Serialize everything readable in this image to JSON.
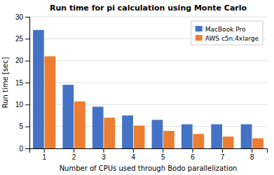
{
  "chart_data": {
    "type": "bar",
    "title": "Run time for pi calculation using Monte Carlo",
    "xlabel": "Number of CPUs used through Bodo parallelization",
    "ylabel": "Run time [sec]",
    "categories": [
      1,
      2,
      3,
      4,
      5,
      6,
      7,
      8
    ],
    "series": [
      {
        "name": "MacBook Pro",
        "color": "#4472C4",
        "values": [
          27,
          14.5,
          9.5,
          7.5,
          6.5,
          5.5,
          5.5,
          5.5
        ]
      },
      {
        "name": "AWS c5n.4xlarge",
        "color": "#ED7D31",
        "values": [
          21,
          10.7,
          7.0,
          5.2,
          4.0,
          3.3,
          2.7,
          2.3
        ]
      }
    ],
    "ylim": [
      0,
      30
    ],
    "yticks": [
      0,
      5,
      10,
      15,
      20,
      25,
      30
    ],
    "grid": true,
    "legend": "upper right"
  }
}
